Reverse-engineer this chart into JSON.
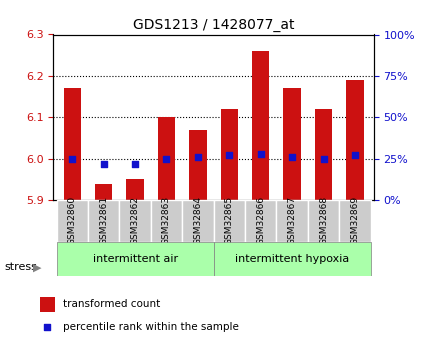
{
  "title": "GDS1213 / 1428077_at",
  "samples": [
    "GSM32860",
    "GSM32861",
    "GSM32862",
    "GSM32863",
    "GSM32864",
    "GSM32865",
    "GSM32866",
    "GSM32867",
    "GSM32868",
    "GSM32869"
  ],
  "transformed_count": [
    6.17,
    5.94,
    5.95,
    6.1,
    6.07,
    6.12,
    6.26,
    6.17,
    6.12,
    6.19
  ],
  "percentile_rank": [
    25,
    22,
    22,
    25,
    26,
    27,
    28,
    26,
    25,
    27
  ],
  "ylim_left": [
    5.9,
    6.3
  ],
  "ylim_right": [
    0,
    100
  ],
  "yticks_left": [
    5.9,
    6.0,
    6.1,
    6.2,
    6.3
  ],
  "yticks_right": [
    0,
    25,
    50,
    75,
    100
  ],
  "bar_color": "#cc1111",
  "dot_color": "#1111cc",
  "bar_bottom": 5.9,
  "group1_label": "intermittent air",
  "group2_label": "intermittent hypoxia",
  "group1_indices": [
    0,
    1,
    2,
    3,
    4
  ],
  "group2_indices": [
    5,
    6,
    7,
    8,
    9
  ],
  "stress_label": "stress",
  "legend1": "transformed count",
  "legend2": "percentile rank within the sample",
  "group_bg_color": "#aaffaa",
  "tick_label_bg": "#cccccc",
  "ylabel_left_color": "#cc1111",
  "ylabel_right_color": "#1111cc"
}
